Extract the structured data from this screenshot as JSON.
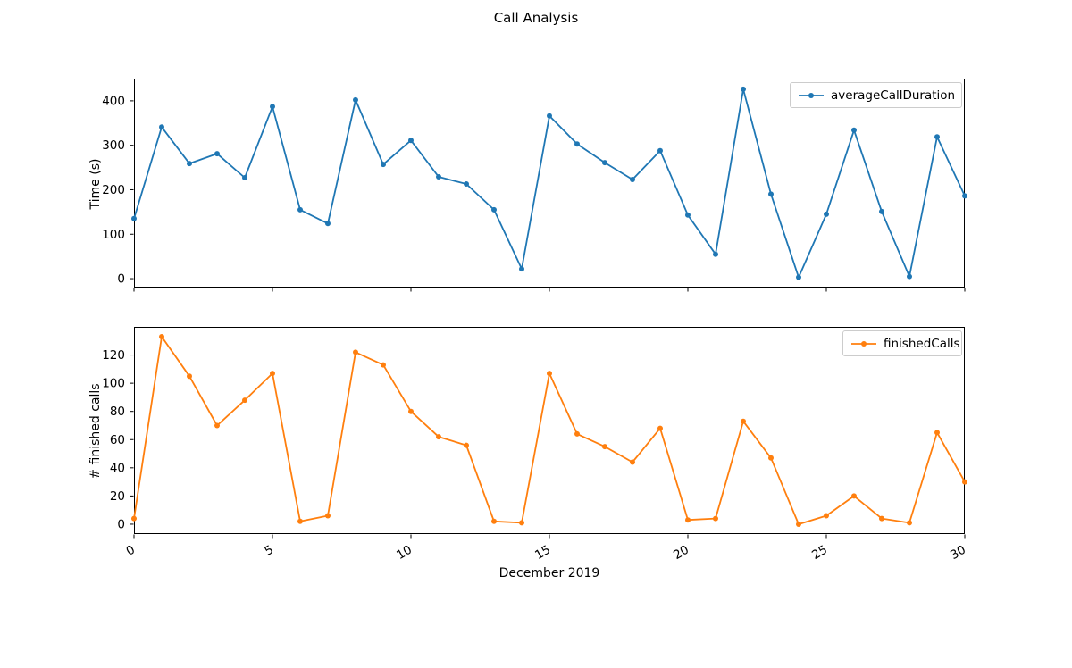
{
  "figure": {
    "title": "Call Analysis"
  },
  "colors": {
    "blue": "#1f77b4",
    "orange": "#ff7f0e",
    "axis": "#000000",
    "legend_border": "#cccccc"
  },
  "chart_data": [
    {
      "type": "line",
      "title": "",
      "ylabel": "Time (s)",
      "xlabel": "",
      "legend": "averageCallDuration",
      "legend_position": "upper right",
      "grid": false,
      "x": [
        0,
        1,
        2,
        3,
        4,
        5,
        6,
        7,
        8,
        9,
        10,
        11,
        12,
        13,
        14,
        15,
        16,
        17,
        18,
        19,
        20,
        21,
        22,
        23,
        24,
        25,
        26,
        27,
        28,
        29,
        30
      ],
      "series": [
        {
          "name": "averageCallDuration",
          "color": "#1f77b4",
          "values": [
            135,
            341,
            259,
            281,
            227,
            387,
            155,
            124,
            402,
            257,
            311,
            229,
            213,
            155,
            22,
            366,
            303,
            261,
            223,
            288,
            143,
            55,
            426,
            190,
            3,
            145,
            334,
            151,
            5,
            319,
            186
          ]
        }
      ],
      "xlim": [
        0,
        30
      ],
      "ylim": [
        -20,
        450
      ],
      "xticks": [
        0,
        5,
        10,
        15,
        20,
        25,
        30
      ],
      "yticks": [
        0,
        100,
        200,
        300,
        400
      ],
      "xtick_labels_visible": false
    },
    {
      "type": "line",
      "title": "",
      "ylabel": "# finished calls",
      "xlabel": "December 2019",
      "legend": "finishedCalls",
      "legend_position": "upper right",
      "grid": false,
      "x": [
        0,
        1,
        2,
        3,
        4,
        5,
        6,
        7,
        8,
        9,
        10,
        11,
        12,
        13,
        14,
        15,
        16,
        17,
        18,
        19,
        20,
        21,
        22,
        23,
        24,
        25,
        26,
        27,
        28,
        29,
        30
      ],
      "series": [
        {
          "name": "finishedCalls",
          "color": "#ff7f0e",
          "values": [
            4,
            133,
            105,
            70,
            88,
            107,
            2,
            6,
            122,
            113,
            80,
            62,
            56,
            2,
            1,
            107,
            64,
            55,
            44,
            68,
            3,
            4,
            73,
            47,
            0,
            6,
            20,
            4,
            1,
            65,
            30
          ]
        }
      ],
      "xlim": [
        0,
        30
      ],
      "ylim": [
        -7,
        140
      ],
      "xticks": [
        0,
        5,
        10,
        15,
        20,
        25,
        30
      ],
      "yticks": [
        0,
        20,
        40,
        60,
        80,
        100,
        120
      ],
      "xtick_labels_visible": true
    }
  ]
}
